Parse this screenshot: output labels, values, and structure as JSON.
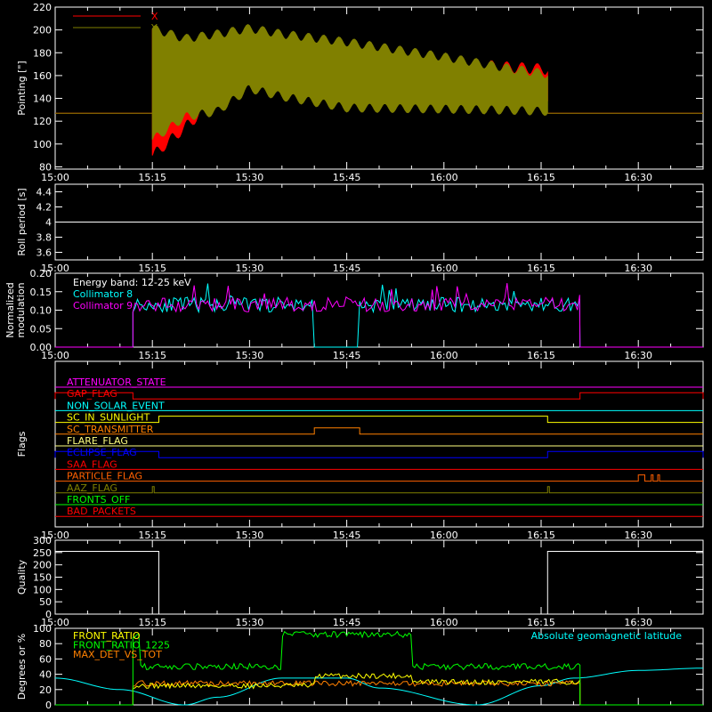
{
  "time_axis": {
    "range": [
      "15:00",
      "16:40"
    ],
    "tick_labels": [
      "15:00",
      "15:15",
      "15:30",
      "15:45",
      "16:00",
      "16:15",
      "16:30"
    ]
  },
  "colors": {
    "background": "#000000",
    "axes": "#ffffff",
    "red": "#ff0000",
    "olive": "#808000",
    "cyan": "#00ffff",
    "magenta": "#ff00ff",
    "green": "#00ff00",
    "yellow": "#ffff00",
    "orange": "#ff8000",
    "blue": "#0000ff",
    "dark_orange": "#ff6000",
    "pale_yellow": "#ffff80"
  },
  "chart_data": [
    {
      "type": "line",
      "ylabel": "Pointing [\"]",
      "ylim": [
        78,
        220
      ],
      "yticks": [
        80,
        100,
        120,
        140,
        160,
        180,
        200,
        220
      ],
      "legend": {
        "placement": "top-left",
        "entries": [
          "X",
          "Y"
        ]
      },
      "series": [
        {
          "name": "X",
          "color": "#ff0000",
          "baseline": 127,
          "active_window": [
            "15:15",
            "16:16"
          ],
          "envelope_time": [
            "15:15",
            "15:20",
            "15:25",
            "15:30",
            "15:35",
            "15:45",
            "16:00",
            "16:10",
            "16:16"
          ],
          "upper": [
            205,
            180,
            188,
            195,
            190,
            182,
            176,
            172,
            170
          ],
          "lower": [
            85,
            110,
            135,
            150,
            152,
            135,
            132,
            135,
            135
          ]
        },
        {
          "name": "Y",
          "color": "#808000",
          "baseline": 127,
          "active_window": [
            "15:15",
            "16:16"
          ],
          "envelope_time": [
            "15:15",
            "15:20",
            "15:25",
            "15:30",
            "15:35",
            "15:45",
            "16:00",
            "16:10",
            "16:16"
          ],
          "upper": [
            205,
            196,
            200,
            205,
            200,
            193,
            180,
            170,
            165
          ],
          "lower": [
            100,
            120,
            125,
            145,
            138,
            128,
            127,
            126,
            125
          ]
        }
      ]
    },
    {
      "type": "line",
      "ylabel": "Roll period [s]",
      "ylim": [
        3.5,
        4.5
      ],
      "yticks": [
        3.6,
        3.8,
        4.0,
        4.2,
        4.4
      ],
      "series": [
        {
          "name": "",
          "color": "#ffffff",
          "value": 4.0
        }
      ]
    },
    {
      "type": "line",
      "ylabel": "Normalized modulation",
      "ylim": [
        0,
        0.2
      ],
      "yticks": [
        0.0,
        0.05,
        0.1,
        0.15,
        0.2
      ],
      "tick_labels": [
        "0.00",
        "0.05",
        "0.10",
        "0.15",
        "0.20"
      ],
      "annotation": "Energy band: 12-25 keV",
      "legend": {
        "placement": "top-left",
        "entries": [
          "Collimator 8",
          "Collimator 9"
        ]
      },
      "series": [
        {
          "name": "Collimator 8",
          "color": "#00ffff",
          "active_window": [
            "15:12",
            "16:21"
          ],
          "gap_window": [
            "15:40",
            "15:47"
          ],
          "mean": 0.115,
          "spread": 0.02
        },
        {
          "name": "Collimator 9",
          "color": "#ff00ff",
          "active_window": [
            "15:12",
            "16:21"
          ],
          "mean": 0.115,
          "spread": 0.02
        }
      ]
    },
    {
      "type": "line",
      "ylabel": "Flags",
      "flags": [
        {
          "name": "ATTENUATOR_STATE",
          "color": "#ff00ff",
          "segments": []
        },
        {
          "name": "GAP_FLAG",
          "color": "#ff0000",
          "segments": [
            [
              "15:00",
              "15:12"
            ],
            [
              "16:21",
              "16:40"
            ]
          ]
        },
        {
          "name": "NON_SOLAR_EVENT",
          "color": "#00ffff",
          "segments": []
        },
        {
          "name": "SC_IN_SUNLIGHT",
          "color": "#ffff00",
          "segments": [
            [
              "15:16",
              "16:16"
            ]
          ]
        },
        {
          "name": "SC_TRANSMITTER",
          "color": "#ff8000",
          "segments": [
            [
              "15:40",
              "15:47"
            ]
          ]
        },
        {
          "name": "FLARE_FLAG",
          "color": "#ffff80",
          "segments": []
        },
        {
          "name": "ECLIPSE_FLAG",
          "color": "#0000ff",
          "segments": [
            [
              "15:00",
              "15:16"
            ],
            [
              "16:16",
              "16:40"
            ]
          ]
        },
        {
          "name": "SAA_FLAG",
          "color": "#ff0000",
          "segments": []
        },
        {
          "name": "PARTICLE_FLAG",
          "color": "#ff6000",
          "segments": [
            [
              "16:30",
              "16:31"
            ],
            [
              "16:32",
              "16:32"
            ],
            [
              "16:33",
              "16:33"
            ]
          ]
        },
        {
          "name": "AAZ_FLAG",
          "color": "#808000",
          "segments": [
            [
              "15:15",
              "15:15"
            ],
            [
              "16:16",
              "16:16"
            ]
          ]
        },
        {
          "name": "FRONTS_OFF",
          "color": "#00ff00",
          "segments": []
        },
        {
          "name": "BAD_PACKETS",
          "color": "#ff0000",
          "segments": []
        }
      ]
    },
    {
      "type": "line",
      "ylabel": "Quality",
      "ylim": [
        0,
        300
      ],
      "yticks": [
        0,
        50,
        100,
        150,
        200,
        250,
        300
      ],
      "series": [
        {
          "name": "",
          "color": "#ffffff",
          "steps": [
            [
              "15:00",
              255
            ],
            [
              "15:16",
              0
            ],
            [
              "16:16",
              255
            ]
          ]
        }
      ]
    },
    {
      "type": "line",
      "ylabel": "Degrees or %",
      "ylim": [
        0,
        100
      ],
      "yticks": [
        0,
        20,
        40,
        60,
        80,
        100
      ],
      "legend": {
        "placement": "top-left",
        "entries": [
          "FRONT_RATIO",
          "FRONT_RATIO_1225",
          "MAX_DET_VS_TOT"
        ]
      },
      "annotation": "Absolute geomagnetic latitude",
      "series": [
        {
          "name": "FRONT_RATIO",
          "color": "#ffff00",
          "active_window": [
            "15:12",
            "16:21"
          ],
          "levels": [
            [
              "15:12",
              25
            ],
            [
              "15:40",
              38
            ],
            [
              "15:55",
              30
            ],
            [
              "16:21",
              30
            ]
          ]
        },
        {
          "name": "FRONT_RATIO_1225",
          "color": "#00ff00",
          "active_window": [
            "15:12",
            "16:21"
          ],
          "levels": [
            [
              "15:12",
              92
            ],
            [
              "15:13",
              50
            ],
            [
              "15:35",
              92
            ],
            [
              "15:55",
              50
            ],
            [
              "16:21",
              50
            ]
          ]
        },
        {
          "name": "MAX_DET_VS_TOT",
          "color": "#ff8000",
          "active_window": [
            "15:12",
            "16:21"
          ],
          "levels": [
            [
              "15:12",
              28
            ],
            [
              "16:21",
              28
            ]
          ]
        },
        {
          "name": "Absolute geomagnetic latitude",
          "color": "#00ffff",
          "x": [
            "15:00",
            "15:10",
            "15:20",
            "15:25",
            "15:35",
            "15:45",
            "15:50",
            "16:05",
            "16:15",
            "16:20",
            "16:30",
            "16:40"
          ],
          "y": [
            35,
            20,
            0,
            10,
            35,
            35,
            22,
            0,
            25,
            35,
            45,
            48
          ]
        }
      ]
    }
  ]
}
